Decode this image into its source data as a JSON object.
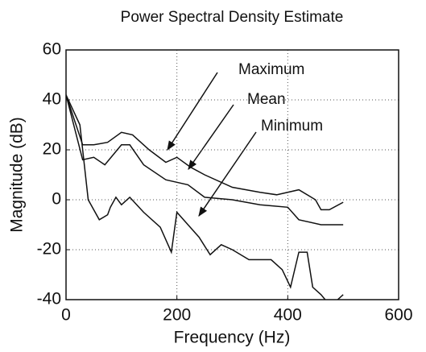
{
  "chart_data": {
    "type": "line",
    "title": "Power Spectral Density Estimate",
    "x_label": "Frequency (Hz)",
    "y_label": "Magnitude (dB)",
    "xlim": [
      0,
      600
    ],
    "xticks": [
      0,
      200,
      400,
      600
    ],
    "ylim": [
      -40,
      60
    ],
    "yticks": [
      -40,
      -20,
      0,
      20,
      40,
      60
    ],
    "grid": true,
    "annotations": [
      "Maximum",
      "Mean",
      "Minimum"
    ],
    "series": [
      {
        "name": "Maximum",
        "color": "#111111",
        "x": [
          0,
          30,
          50,
          75,
          100,
          120,
          150,
          180,
          200,
          225,
          250,
          300,
          350,
          380,
          420,
          450,
          460,
          475,
          500
        ],
        "values": [
          42,
          22,
          22,
          23,
          27,
          26,
          20,
          15,
          17,
          13,
          10,
          5,
          3,
          2,
          4,
          0,
          -4,
          -4,
          -1
        ]
      },
      {
        "name": "Mean",
        "color": "#111111",
        "x": [
          0,
          30,
          50,
          70,
          100,
          115,
          140,
          180,
          200,
          220,
          250,
          300,
          350,
          400,
          420,
          460,
          500
        ],
        "values": [
          42,
          16,
          17,
          14,
          22,
          22,
          14,
          8,
          7,
          6,
          1,
          0,
          -2,
          -3,
          -8,
          -10,
          -10
        ]
      },
      {
        "name": "Minimum",
        "color": "#111111",
        "x": [
          0,
          25,
          40,
          60,
          75,
          80,
          90,
          100,
          115,
          140,
          170,
          190,
          200,
          220,
          240,
          260,
          280,
          300,
          330,
          370,
          390,
          405,
          420,
          435,
          445,
          460,
          475,
          490,
          500
        ],
        "values": [
          42,
          30,
          0,
          -8,
          -6,
          -3,
          1,
          -2,
          1,
          -5,
          -11,
          -21,
          -5,
          -10,
          -15,
          -22,
          -18,
          -20,
          -24,
          -24,
          -28,
          -35,
          -21,
          -21,
          -35,
          -38,
          -42,
          -40,
          -38
        ]
      }
    ]
  }
}
